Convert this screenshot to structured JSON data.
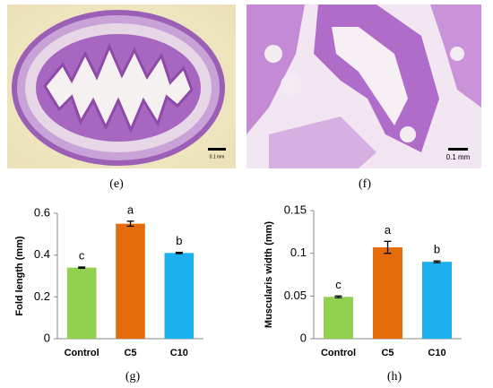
{
  "figure": {
    "panel_labels": [
      "(e)",
      "(f)",
      "(g)",
      "(h)"
    ],
    "scale_bar_labels": [
      "0.1 mm",
      "0.1 mm"
    ]
  },
  "chart_data": [
    {
      "type": "bar",
      "ylabel": "Fold length (mm)",
      "categories": [
        "Control",
        "C5",
        "C10"
      ],
      "values": [
        0.34,
        0.55,
        0.41
      ],
      "errors": [
        0.003,
        0.012,
        0.003
      ],
      "colors": [
        "#92d050",
        "#e46c0a",
        "#1cb0ee"
      ],
      "annotations": [
        "c",
        "a",
        "b"
      ],
      "ylim": [
        0,
        0.6
      ],
      "yticks": [
        0,
        0.2,
        0.4,
        0.6
      ]
    },
    {
      "type": "bar",
      "ylabel": "Muscularis width (mm)",
      "categories": [
        "Control",
        "C5",
        "C10"
      ],
      "values": [
        0.049,
        0.107,
        0.09
      ],
      "errors": [
        0.001,
        0.007,
        0.001
      ],
      "colors": [
        "#92d050",
        "#e46c0a",
        "#1cb0ee"
      ],
      "annotations": [
        "c",
        "a",
        "b"
      ],
      "ylim": [
        0,
        0.15
      ],
      "yticks": [
        0,
        0.05,
        0.1,
        0.15
      ]
    }
  ]
}
